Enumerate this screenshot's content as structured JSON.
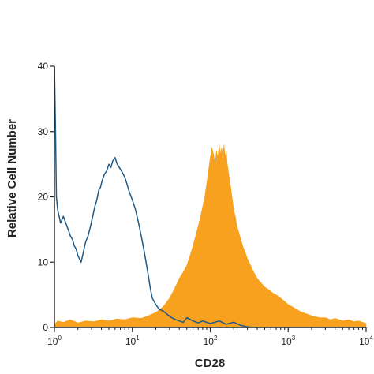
{
  "chart_data": {
    "type": "area",
    "xlabel": "CD28",
    "ylabel": "Relative Cell Number",
    "x_scale": "log",
    "xlim": [
      1,
      10000
    ],
    "ylim": [
      0,
      40
    ],
    "x_ticks": [
      {
        "value": 1,
        "base": "10",
        "exp": "0"
      },
      {
        "value": 10,
        "base": "10",
        "exp": "1"
      },
      {
        "value": 100,
        "base": "10",
        "exp": "2"
      },
      {
        "value": 1000,
        "base": "10",
        "exp": "3"
      },
      {
        "value": 10000,
        "base": "10",
        "exp": "4"
      }
    ],
    "y_ticks": [
      {
        "value": 0,
        "label": "0"
      },
      {
        "value": 10,
        "label": "10"
      },
      {
        "value": 20,
        "label": "20"
      },
      {
        "value": 30,
        "label": "30"
      },
      {
        "value": 40,
        "label": "40"
      }
    ],
    "series": [
      {
        "style": "filled",
        "color": "#f7a11f",
        "x": [
          1.0,
          1.1,
          1.3,
          1.6,
          2.0,
          2.5,
          3.2,
          4.0,
          5.0,
          6.3,
          8.0,
          10,
          13,
          16,
          20,
          25,
          30,
          35,
          40,
          45,
          50,
          55,
          60,
          65,
          70,
          75,
          80,
          85,
          90,
          95,
          100,
          105,
          110,
          115,
          120,
          125,
          130,
          135,
          140,
          145,
          150,
          155,
          160,
          165,
          170,
          175,
          180,
          190,
          200,
          210,
          220,
          240,
          260,
          280,
          300,
          330,
          360,
          400,
          450,
          500,
          560,
          630,
          700,
          800,
          900,
          1000,
          1200,
          1400,
          1600,
          1800,
          2000,
          2500,
          3000,
          3500,
          4000,
          5000,
          6000,
          7000,
          8000,
          9000,
          10000
        ],
        "y": [
          0.5,
          1.0,
          0.8,
          1.2,
          0.7,
          1.0,
          0.9,
          1.2,
          1.0,
          1.3,
          1.2,
          1.5,
          1.4,
          1.8,
          2.3,
          3.2,
          4.5,
          6.0,
          7.5,
          8.5,
          9.5,
          11,
          12.5,
          14,
          15.5,
          17,
          18.5,
          20,
          22,
          24,
          26,
          27.5,
          26.5,
          25,
          27,
          26,
          28,
          26.5,
          27.5,
          26,
          28,
          26,
          27,
          25,
          24,
          23,
          22,
          20,
          18,
          17,
          15.5,
          14,
          12.5,
          11.5,
          10.5,
          9.5,
          8.5,
          7.5,
          6.8,
          6.2,
          5.8,
          5.3,
          5.0,
          4.5,
          4.0,
          3.5,
          3.0,
          2.5,
          2.2,
          2.0,
          1.8,
          1.5,
          1.5,
          1.2,
          1.4,
          1.0,
          1.2,
          0.9,
          1.0,
          0.8,
          0.6
        ]
      },
      {
        "style": "line",
        "color": "#1f5a87",
        "x": [
          1.0,
          1.03,
          1.06,
          1.1,
          1.15,
          1.2,
          1.3,
          1.4,
          1.5,
          1.6,
          1.7,
          1.8,
          1.9,
          2.0,
          2.1,
          2.2,
          2.3,
          2.5,
          2.7,
          2.9,
          3.1,
          3.3,
          3.5,
          3.7,
          3.9,
          4.1,
          4.4,
          4.7,
          5.0,
          5.3,
          5.6,
          6.0,
          6.4,
          6.8,
          7.2,
          7.6,
          8.0,
          8.5,
          9.0,
          10,
          11,
          12,
          13,
          14,
          15,
          16,
          17,
          18,
          20,
          22,
          25,
          28,
          32,
          36,
          40,
          45,
          50,
          60,
          70,
          80,
          100,
          130,
          160,
          200,
          250,
          300,
          400
        ],
        "y": [
          40,
          31,
          20,
          18,
          17,
          16,
          17,
          16,
          15,
          14,
          13.5,
          12.5,
          12,
          11,
          10.5,
          10,
          11,
          13,
          14,
          15.5,
          17,
          18.5,
          19.5,
          21,
          21.5,
          22.5,
          23.5,
          24,
          25,
          24.5,
          25.5,
          26,
          25,
          24.5,
          24,
          23.5,
          23,
          22,
          21,
          19.5,
          18,
          16,
          14,
          12,
          10,
          8,
          6,
          4.5,
          3.5,
          2.8,
          2.5,
          2.0,
          1.5,
          1.2,
          1.0,
          0.8,
          1.5,
          1.0,
          0.7,
          1.0,
          0.6,
          1.0,
          0.5,
          0.8,
          0.3,
          0.1,
          0
        ]
      }
    ]
  }
}
